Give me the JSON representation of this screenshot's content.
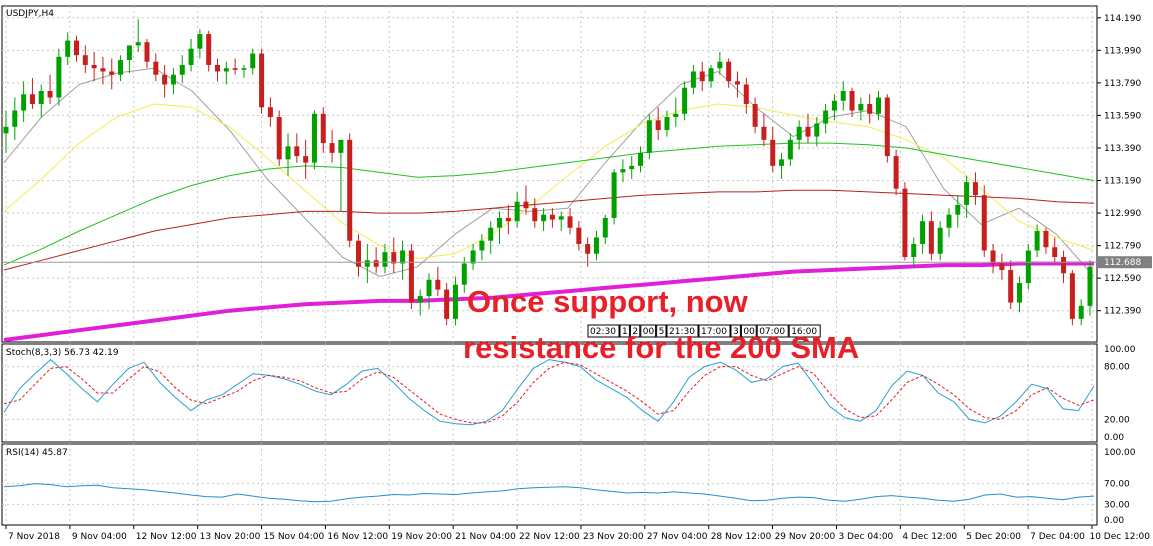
{
  "chart_data": [
    {
      "type": "candlestick",
      "symbol_label": "USDJPY,H4",
      "y_ticks": [
        114.19,
        113.99,
        113.79,
        113.59,
        113.39,
        113.19,
        112.99,
        112.79,
        112.59,
        112.39
      ],
      "y_tick_labels": [
        "114.190",
        "113.990",
        "113.790",
        "113.590",
        "113.390",
        "113.190",
        "112.990",
        "112.790",
        "112.590",
        "112.390"
      ],
      "ylim": [
        112.21,
        114.25
      ],
      "current_price": 112.688,
      "current_price_label": "112.688",
      "annotation": {
        "line1": "Once support, now",
        "line2": "resistance for the 200 SMA"
      },
      "session_labels": [
        "02:30",
        "1",
        "2",
        "00",
        "5",
        "21:30",
        "17:00",
        "3",
        "00",
        "07:00",
        "16:00"
      ],
      "candles_ohlc": [
        [
          113.48,
          113.62,
          113.36,
          113.52
        ],
        [
          113.52,
          113.7,
          113.44,
          113.62
        ],
        [
          113.62,
          113.8,
          113.55,
          113.72
        ],
        [
          113.72,
          113.82,
          113.63,
          113.66
        ],
        [
          113.66,
          113.78,
          113.58,
          113.74
        ],
        [
          113.74,
          113.84,
          113.66,
          113.7
        ],
        [
          113.7,
          114.0,
          113.65,
          113.95
        ],
        [
          113.95,
          114.1,
          113.9,
          114.05
        ],
        [
          114.05,
          114.08,
          113.92,
          113.96
        ],
        [
          113.96,
          114.02,
          113.85,
          113.9
        ],
        [
          113.9,
          113.98,
          113.8,
          113.88
        ],
        [
          113.88,
          113.95,
          113.78,
          113.86
        ],
        [
          113.86,
          113.94,
          113.75,
          113.84
        ],
        [
          113.84,
          113.96,
          113.8,
          113.93
        ],
        [
          113.93,
          114.0,
          113.85,
          114.02
        ],
        [
          114.02,
          114.18,
          113.98,
          114.04
        ],
        [
          114.04,
          114.06,
          113.88,
          113.92
        ],
        [
          113.92,
          113.97,
          113.8,
          113.84
        ],
        [
          113.84,
          113.9,
          113.7,
          113.78
        ],
        [
          113.78,
          113.88,
          113.72,
          113.84
        ],
        [
          113.84,
          113.96,
          113.79,
          113.9
        ],
        [
          113.9,
          114.06,
          113.86,
          114.0
        ],
        [
          114.0,
          114.12,
          113.94,
          114.09
        ],
        [
          114.09,
          114.11,
          113.86,
          113.9
        ],
        [
          113.9,
          113.94,
          113.8,
          113.86
        ],
        [
          113.86,
          113.92,
          113.78,
          113.88
        ],
        [
          113.88,
          113.94,
          113.84,
          113.87
        ],
        [
          113.87,
          113.9,
          113.82,
          113.88
        ],
        [
          113.88,
          114.0,
          113.84,
          113.97
        ],
        [
          113.97,
          114.0,
          113.6,
          113.64
        ],
        [
          113.64,
          113.7,
          113.52,
          113.58
        ],
        [
          113.58,
          113.62,
          113.28,
          113.32
        ],
        [
          113.32,
          113.48,
          113.22,
          113.4
        ],
        [
          113.4,
          113.48,
          113.3,
          113.34
        ],
        [
          113.34,
          113.44,
          113.2,
          113.3
        ],
        [
          113.3,
          113.62,
          113.26,
          113.6
        ],
        [
          113.6,
          113.64,
          113.36,
          113.42
        ],
        [
          113.42,
          113.5,
          113.3,
          113.36
        ],
        [
          113.36,
          113.42,
          113.0,
          113.44
        ],
        [
          113.44,
          113.48,
          112.78,
          112.82
        ],
        [
          112.82,
          112.86,
          112.6,
          112.66
        ],
        [
          112.66,
          112.8,
          112.56,
          112.7
        ],
        [
          112.7,
          112.78,
          112.62,
          112.66
        ],
        [
          112.66,
          112.8,
          112.62,
          112.75
        ],
        [
          112.75,
          112.84,
          112.62,
          112.68
        ],
        [
          112.68,
          112.82,
          112.58,
          112.76
        ],
        [
          112.76,
          112.8,
          112.4,
          112.44
        ],
        [
          112.44,
          112.52,
          112.36,
          112.48
        ],
        [
          112.48,
          112.62,
          112.4,
          112.58
        ],
        [
          112.58,
          112.66,
          112.48,
          112.52
        ],
        [
          112.52,
          112.56,
          112.3,
          112.34
        ],
        [
          112.34,
          112.6,
          112.3,
          112.55
        ],
        [
          112.55,
          112.72,
          112.5,
          112.68
        ],
        [
          112.68,
          112.8,
          112.64,
          112.76
        ],
        [
          112.76,
          112.86,
          112.7,
          112.82
        ],
        [
          112.82,
          112.94,
          112.74,
          112.9
        ],
        [
          112.9,
          113.0,
          112.8,
          112.96
        ],
        [
          112.96,
          113.04,
          112.86,
          112.94
        ],
        [
          112.94,
          113.12,
          112.9,
          113.06
        ],
        [
          113.06,
          113.16,
          112.98,
          113.02
        ],
        [
          113.02,
          113.08,
          112.9,
          112.94
        ],
        [
          112.94,
          113.02,
          112.88,
          112.98
        ],
        [
          112.98,
          113.02,
          112.9,
          112.95
        ],
        [
          112.95,
          113.0,
          112.88,
          112.97
        ],
        [
          112.97,
          113.02,
          112.86,
          112.9
        ],
        [
          112.9,
          112.94,
          112.76,
          112.8
        ],
        [
          112.8,
          112.84,
          112.66,
          112.74
        ],
        [
          112.74,
          112.88,
          112.7,
          112.84
        ],
        [
          112.84,
          112.98,
          112.8,
          112.96
        ],
        [
          112.96,
          113.26,
          112.92,
          113.24
        ],
        [
          113.24,
          113.32,
          113.18,
          113.26
        ],
        [
          113.26,
          113.34,
          113.2,
          113.28
        ],
        [
          113.28,
          113.4,
          113.24,
          113.36
        ],
        [
          113.36,
          113.6,
          113.32,
          113.56
        ],
        [
          113.56,
          113.64,
          113.44,
          113.5
        ],
        [
          113.5,
          113.62,
          113.46,
          113.58
        ],
        [
          113.58,
          113.7,
          113.52,
          113.6
        ],
        [
          113.6,
          113.8,
          113.56,
          113.76
        ],
        [
          113.76,
          113.9,
          113.72,
          113.86
        ],
        [
          113.86,
          113.92,
          113.74,
          113.8
        ],
        [
          113.8,
          113.9,
          113.76,
          113.88
        ],
        [
          113.88,
          113.98,
          113.84,
          113.92
        ],
        [
          113.92,
          113.94,
          113.76,
          113.8
        ],
        [
          113.8,
          113.86,
          113.7,
          113.78
        ],
        [
          113.78,
          113.82,
          113.6,
          113.66
        ],
        [
          113.66,
          113.7,
          113.48,
          113.52
        ],
        [
          113.52,
          113.6,
          113.4,
          113.44
        ],
        [
          113.44,
          113.52,
          113.24,
          113.28
        ],
        [
          113.28,
          113.36,
          113.2,
          113.32
        ],
        [
          113.32,
          113.48,
          113.28,
          113.44
        ],
        [
          113.44,
          113.56,
          113.38,
          113.52
        ],
        [
          113.52,
          113.6,
          113.42,
          113.46
        ],
        [
          113.46,
          113.58,
          113.4,
          113.54
        ],
        [
          113.54,
          113.66,
          113.48,
          113.62
        ],
        [
          113.62,
          113.72,
          113.56,
          113.68
        ],
        [
          113.68,
          113.8,
          113.62,
          113.74
        ],
        [
          113.74,
          113.76,
          113.58,
          113.62
        ],
        [
          113.62,
          113.7,
          113.56,
          113.66
        ],
        [
          113.66,
          113.72,
          113.54,
          113.6
        ],
        [
          113.6,
          113.74,
          113.56,
          113.7
        ],
        [
          113.7,
          113.72,
          113.3,
          113.34
        ],
        [
          113.34,
          113.38,
          113.1,
          113.14
        ],
        [
          113.14,
          113.18,
          112.7,
          112.72
        ],
        [
          112.72,
          112.84,
          112.66,
          112.8
        ],
        [
          112.8,
          112.98,
          112.74,
          112.94
        ],
        [
          112.94,
          113.0,
          112.7,
          112.74
        ],
        [
          112.74,
          112.94,
          112.7,
          112.9
        ],
        [
          112.9,
          113.02,
          112.84,
          112.98
        ],
        [
          112.98,
          113.1,
          112.9,
          113.04
        ],
        [
          113.04,
          113.22,
          112.96,
          113.18
        ],
        [
          113.18,
          113.24,
          113.04,
          113.1
        ],
        [
          113.1,
          113.16,
          112.72,
          112.76
        ],
        [
          112.76,
          112.8,
          112.62,
          112.68
        ],
        [
          112.68,
          112.74,
          112.58,
          112.64
        ],
        [
          112.64,
          112.7,
          112.4,
          112.44
        ],
        [
          112.44,
          112.6,
          112.38,
          112.56
        ],
        [
          112.56,
          112.8,
          112.52,
          112.76
        ],
        [
          112.76,
          112.92,
          112.72,
          112.88
        ],
        [
          112.88,
          112.9,
          112.74,
          112.78
        ],
        [
          112.78,
          112.84,
          112.68,
          112.72
        ],
        [
          112.72,
          112.76,
          112.56,
          112.62
        ],
        [
          112.62,
          112.64,
          112.3,
          112.34
        ],
        [
          112.34,
          112.46,
          112.3,
          112.42
        ],
        [
          112.42,
          112.7,
          112.36,
          112.66
        ]
      ],
      "ma_200": [
        112.21,
        112.24,
        112.27,
        112.3,
        112.33,
        112.36,
        112.39,
        112.41,
        112.43,
        112.44,
        112.45,
        112.45,
        112.46,
        112.47,
        112.49,
        112.51,
        112.53,
        112.55,
        112.57,
        112.59,
        112.61,
        112.63,
        112.64,
        112.65,
        112.66,
        112.67,
        112.67,
        112.68,
        112.68,
        112.68
      ],
      "ma_100": [
        112.64,
        112.7,
        112.76,
        112.82,
        112.88,
        112.92,
        112.96,
        112.98,
        113.0,
        113.0,
        112.99,
        112.99,
        113.0,
        113.02,
        113.04,
        113.06,
        113.08,
        113.1,
        113.11,
        113.12,
        113.12,
        113.13,
        113.13,
        113.12,
        113.11,
        113.1,
        113.09,
        113.08,
        113.06,
        113.05
      ],
      "ma_50": [
        112.67,
        112.77,
        112.88,
        112.98,
        113.08,
        113.16,
        113.22,
        113.26,
        113.28,
        113.27,
        113.24,
        113.21,
        113.22,
        113.24,
        113.27,
        113.3,
        113.33,
        113.36,
        113.38,
        113.4,
        113.41,
        113.42,
        113.42,
        113.41,
        113.39,
        113.35,
        113.31,
        113.27,
        113.23,
        113.19
      ],
      "ma_20": [
        113.0,
        113.2,
        113.42,
        113.58,
        113.66,
        113.64,
        113.52,
        113.33,
        113.13,
        112.93,
        112.79,
        112.71,
        112.74,
        112.86,
        113.03,
        113.22,
        113.4,
        113.54,
        113.62,
        113.66,
        113.64,
        113.59,
        113.55,
        113.52,
        113.44,
        113.33,
        113.14,
        112.94,
        112.84,
        112.76
      ],
      "ma_10": [
        113.3,
        113.58,
        113.78,
        113.85,
        113.88,
        113.74,
        113.5,
        113.2,
        112.96,
        112.72,
        112.6,
        112.66,
        112.86,
        113.02,
        113.0,
        113.02,
        113.3,
        113.56,
        113.78,
        113.86,
        113.64,
        113.46,
        113.58,
        113.62,
        113.52,
        113.14,
        112.92,
        113.02,
        112.86,
        112.6
      ]
    },
    {
      "type": "line",
      "indicator": "Stoch(8,3,3) 56.73 42.19",
      "y_tick_labels": [
        "100.00",
        "80.00",
        "20.00",
        "0.00"
      ],
      "ylim": [
        0,
        100
      ],
      "series": [
        {
          "values": [
            28,
            55,
            72,
            88,
            72,
            55,
            40,
            60,
            78,
            85,
            62,
            45,
            30,
            42,
            48,
            60,
            72,
            70,
            66,
            60,
            52,
            48,
            60,
            75,
            78,
            62,
            44,
            30,
            18,
            15,
            14,
            18,
            30,
            55,
            78,
            88,
            85,
            80,
            65,
            55,
            45,
            30,
            18,
            40,
            68,
            80,
            85,
            76,
            62,
            66,
            80,
            84,
            60,
            35,
            22,
            18,
            30,
            58,
            75,
            70,
            50,
            40,
            20,
            16,
            24,
            40,
            60,
            55,
            32,
            30,
            58
          ]
        },
        {
          "values": [
            38,
            42,
            60,
            78,
            80,
            66,
            50,
            50,
            66,
            80,
            74,
            56,
            42,
            38,
            45,
            52,
            64,
            70,
            68,
            64,
            56,
            50,
            52,
            66,
            74,
            68,
            54,
            40,
            26,
            20,
            16,
            16,
            24,
            40,
            62,
            78,
            85,
            82,
            72,
            62,
            52,
            40,
            26,
            30,
            52,
            70,
            80,
            80,
            70,
            64,
            72,
            80,
            72,
            50,
            32,
            22,
            24,
            42,
            62,
            70,
            60,
            48,
            32,
            22,
            20,
            30,
            48,
            56,
            44,
            36,
            42
          ]
        }
      ]
    },
    {
      "type": "line",
      "indicator": "RSI(14) 45.87",
      "y_tick_labels": [
        "100.00",
        "70.00",
        "30.00",
        "0.00"
      ],
      "ylim": [
        0,
        100
      ],
      "series": [
        {
          "values": [
            64,
            66,
            70,
            68,
            64,
            66,
            67,
            62,
            60,
            58,
            55,
            52,
            48,
            45,
            44,
            50,
            46,
            42,
            40,
            37,
            35,
            36,
            41,
            44,
            46,
            49,
            48,
            51,
            50,
            49,
            52,
            54,
            56,
            60,
            62,
            63,
            64,
            62,
            58,
            55,
            52,
            53,
            52,
            54,
            52,
            50,
            46,
            42,
            37,
            38,
            42,
            44,
            43,
            38,
            36,
            40,
            45,
            47,
            44,
            42,
            38,
            36,
            40,
            48,
            50,
            44,
            45,
            42,
            39,
            44,
            46
          ]
        }
      ]
    },
    {
      "type": "axis",
      "x_tick_labels": [
        "7 Nov 2018",
        "9 Nov 04:00",
        "12 Nov 12:00",
        "13 Nov 20:00",
        "15 Nov 04:00",
        "16 Nov 12:00",
        "19 Nov 20:00",
        "21 Nov 04:00",
        "22 Nov 12:00",
        "23 Nov 20:00",
        "27 Nov 04:00",
        "28 Nov 12:00",
        "29 Nov 20:00",
        "3 Dec 04:00",
        "4 Dec 12:00",
        "5 Dec 20:00",
        "7 Dec 04:00",
        "10 Dec 12:00"
      ]
    }
  ],
  "colors": {
    "bull": "#00a000",
    "bear": "#c81e1e",
    "ma200": "#e020d8",
    "ma100": "#b82020",
    "ma50": "#22c022",
    "ma20": "#f4ec50",
    "ma10": "#a0a0a0",
    "stoch_main": "#2aa0d0",
    "stoch_signal": "#e02020",
    "rsi": "#2a8cd0",
    "annotation": "#e8202a",
    "price_tag": "#808080"
  }
}
